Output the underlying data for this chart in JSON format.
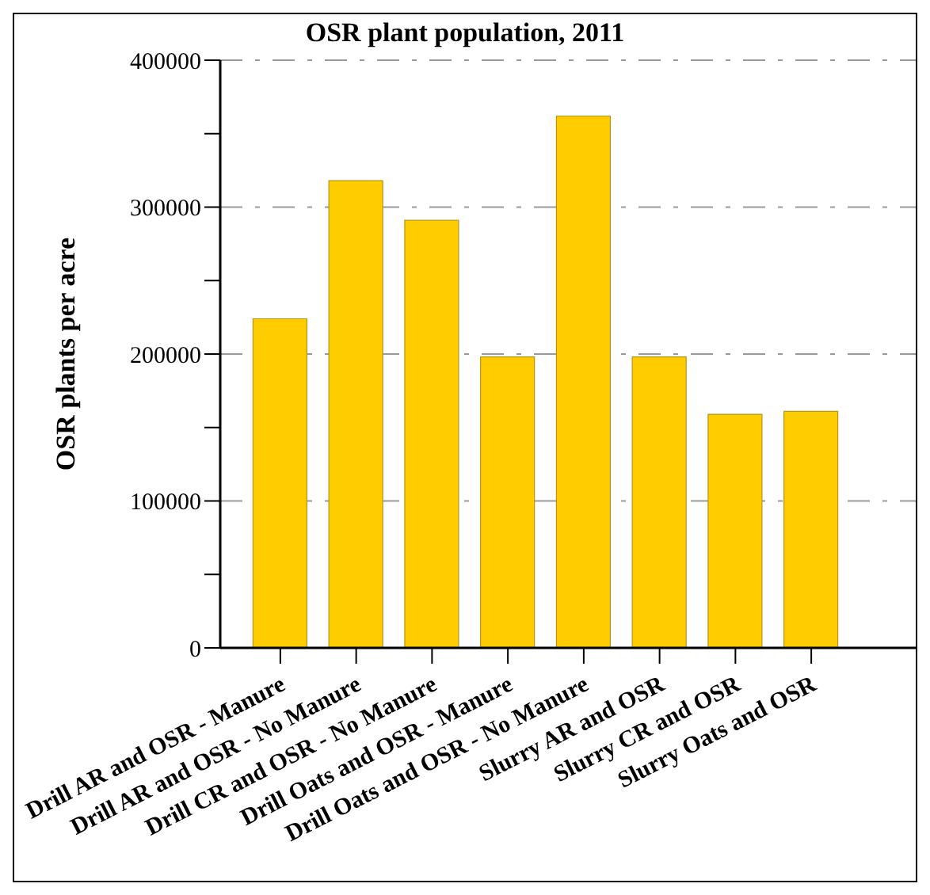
{
  "chart_data": {
    "type": "bar",
    "title": "OSR plant population, 2011",
    "ylabel": "OSR plants per acre",
    "categories": [
      "Drill AR and OSR - Manure",
      "Drill AR and OSR - No Manure",
      "Drill CR and OSR - No Manure",
      "Drill Oats and OSR - Manure",
      "Drill Oats and OSR - No Manure",
      "Slurry AR and OSR",
      "Slurry CR and OSR",
      "Slurry Oats and OSR"
    ],
    "values": [
      224000,
      318000,
      291000,
      198000,
      362000,
      198000,
      159000,
      161000
    ],
    "color": "#ffcc00",
    "ylim": [
      0,
      400000
    ],
    "yticks": [
      0,
      {
        "value": 50000,
        "label": null
      },
      100000,
      {
        "value": 150000,
        "label": null
      },
      200000,
      {
        "value": 250000,
        "label": null
      },
      300000,
      {
        "value": 350000,
        "label": null
      },
      400000
    ],
    "grid": "y"
  }
}
